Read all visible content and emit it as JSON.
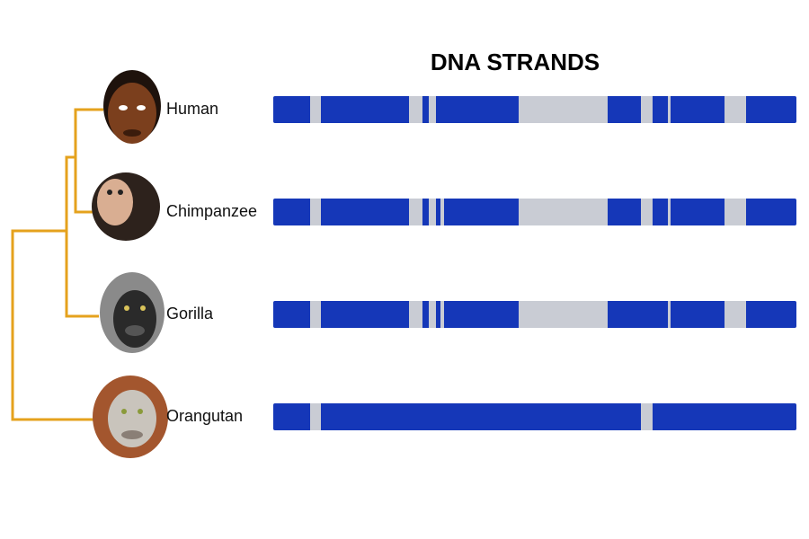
{
  "title": "DNA STRANDS",
  "species": [
    {
      "label": "Human"
    },
    {
      "label": "Chimpanzee"
    },
    {
      "label": "Gorilla"
    },
    {
      "label": "Orangutan"
    }
  ]
}
